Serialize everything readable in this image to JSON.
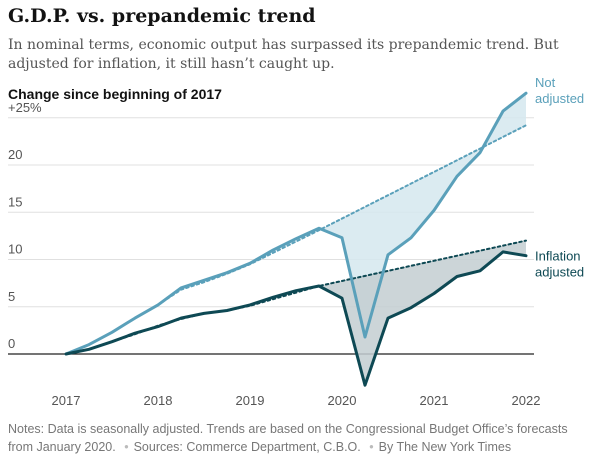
{
  "header": {
    "title": "G.D.P. vs. prepandemic trend",
    "subtitle": "In nominal terms, economic output has surpassed its prepandemic trend. But adjusted for inflation, it still hasn’t caught up.",
    "chart_label": "Change since beginning of 2017"
  },
  "footer": {
    "notes": "Notes: Data is seasonally adjusted. Trends are based on the Congressional Budget Office’s forecasts from January 2020.",
    "sources": "Sources: Commerce Department, C.B.O.",
    "byline": "By The New York Times"
  },
  "colors": {
    "not_adjusted": "#5aa0ba",
    "not_adjusted_fill": "#d5e7ef",
    "adjusted": "#0e4954",
    "adjusted_fill": "#c3ced1",
    "grid": "#e0e0e0",
    "zero": "#222222",
    "axis_text": "#555555"
  },
  "chart_data": {
    "type": "line",
    "title": "G.D.P. vs. prepandemic trend",
    "ylabel": "Change since beginning of 2017",
    "xlim": [
      2017,
      2022
    ],
    "ylim": [
      -5,
      25
    ],
    "x_ticks": [
      "2017",
      "2018",
      "2019",
      "2020",
      "2021",
      "2022"
    ],
    "y_ticks": [
      {
        "value": 25,
        "label": "+25%"
      },
      {
        "value": 20,
        "label": "20"
      },
      {
        "value": 15,
        "label": "15"
      },
      {
        "value": 10,
        "label": "10"
      },
      {
        "value": 5,
        "label": "5"
      },
      {
        "value": 0,
        "label": "0"
      }
    ],
    "grid": true,
    "series": [
      {
        "name": "Not adjusted",
        "line_label": [
          "Not",
          "adjusted"
        ],
        "kind": "actual",
        "color_key": "not_adjusted",
        "x": [
          2017,
          2017.25,
          2017.5,
          2017.75,
          2018,
          2018.25,
          2018.5,
          2018.75,
          2019,
          2019.25,
          2019.5,
          2019.75,
          2020,
          2020.25,
          2020.5,
          2020.75,
          2021,
          2021.25,
          2021.5,
          2021.75,
          2022
        ],
        "values": [
          0,
          1.0,
          2.3,
          3.8,
          5.2,
          7.0,
          7.8,
          8.6,
          9.6,
          11.0,
          12.2,
          13.3,
          12.3,
          1.8,
          10.5,
          12.3,
          15.2,
          18.8,
          21.3,
          25.7,
          27.6
        ]
      },
      {
        "name": "Not adjusted trend",
        "kind": "trend",
        "color_key": "not_adjusted",
        "x": [
          2017,
          2017.25,
          2017.5,
          2017.75,
          2018,
          2018.25,
          2018.5,
          2018.75,
          2019,
          2019.75,
          2022
        ],
        "values": [
          0,
          1.0,
          2.3,
          3.8,
          5.2,
          6.8,
          7.6,
          8.5,
          9.5,
          13.1,
          24.2
        ]
      },
      {
        "name": "Inflation adjusted",
        "line_label": [
          "Inflation",
          "adjusted"
        ],
        "kind": "actual",
        "color_key": "adjusted",
        "x": [
          2017,
          2017.25,
          2017.5,
          2017.75,
          2018,
          2018.25,
          2018.5,
          2018.75,
          2019,
          2019.25,
          2019.5,
          2019.75,
          2020,
          2020.25,
          2020.5,
          2020.75,
          2021,
          2021.25,
          2021.5,
          2021.75,
          2022
        ],
        "values": [
          0,
          0.5,
          1.3,
          2.2,
          2.9,
          3.8,
          4.3,
          4.6,
          5.2,
          6.0,
          6.7,
          7.2,
          5.9,
          -3.3,
          3.8,
          4.9,
          6.4,
          8.2,
          8.8,
          10.8,
          10.4
        ]
      },
      {
        "name": "Inflation adjusted trend",
        "kind": "trend",
        "color_key": "adjusted",
        "x": [
          2017,
          2017.25,
          2017.5,
          2017.75,
          2018,
          2018.25,
          2018.5,
          2018.75,
          2019,
          2019.75,
          2022
        ],
        "values": [
          0,
          0.5,
          1.3,
          2.1,
          3.0,
          3.7,
          4.3,
          4.6,
          5.1,
          7.2,
          12.0
        ]
      }
    ]
  }
}
